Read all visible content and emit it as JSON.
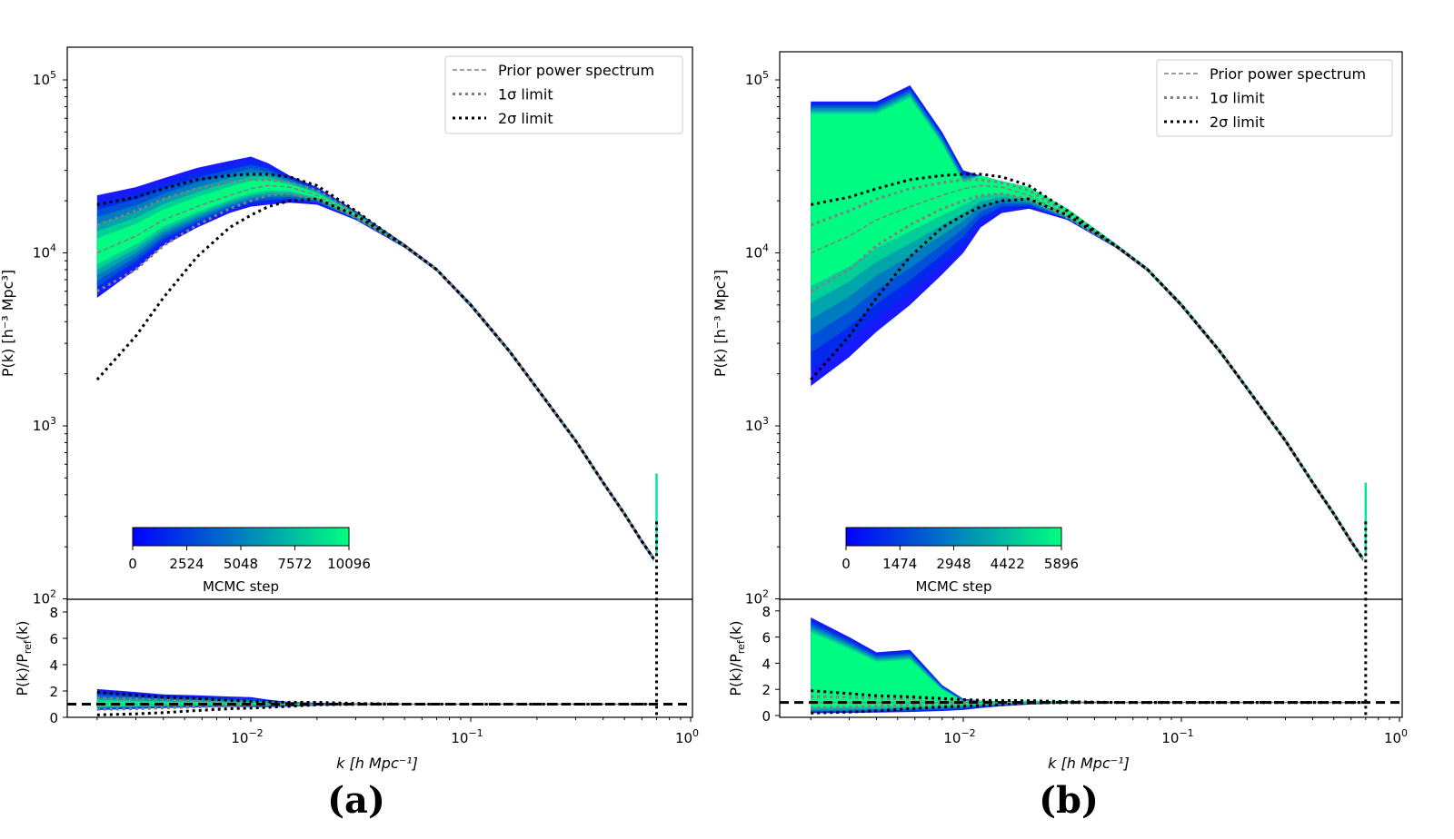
{
  "chart_data": [
    {
      "type": "line",
      "panel_label": "(a)",
      "xlabel": "k [h Mpc⁻¹]",
      "ylabel_top": "P(k) [h⁻³ Mpc³]",
      "ylabel_bottom": {
        "main": "P(k)/P",
        "sub": "ref",
        "tail": "(k)"
      },
      "x_scale": "log",
      "y_scale_top": "log",
      "xlim": [
        0.00146,
        1.02
      ],
      "ylim_top": [
        100,
        155000
      ],
      "ylim_bottom": [
        0,
        9
      ],
      "xticks": [
        {
          "base": "10",
          "exp": "−2"
        },
        {
          "base": "10",
          "exp": "−1"
        },
        {
          "base": "10",
          "exp": "0"
        }
      ],
      "yticks_top": [
        {
          "base": "10",
          "exp": "2"
        },
        {
          "base": "10",
          "exp": "3"
        },
        {
          "base": "10",
          "exp": "4"
        },
        {
          "base": "10",
          "exp": "5"
        }
      ],
      "yticks_bottom": [
        "0",
        "2",
        "4",
        "6",
        "8"
      ],
      "legend": {
        "position": "top-right",
        "entries": [
          "Prior power spectrum",
          "1σ limit",
          "2σ limit"
        ]
      },
      "colorbar": {
        "label": "MCMC step",
        "ticks": [
          "0",
          "2524",
          "5048",
          "7572",
          "10096"
        ],
        "colormap": [
          "#0000ff",
          "#00ff80"
        ]
      },
      "colors": {
        "prior": "#808080",
        "sigma1": "#808080",
        "sigma2": "#000000",
        "ratio_ref": "#000000"
      },
      "k": [
        0.002,
        0.003,
        0.004,
        0.0057,
        0.008,
        0.01,
        0.012,
        0.015,
        0.02,
        0.03,
        0.05,
        0.07,
        0.1,
        0.15,
        0.2,
        0.3,
        0.4,
        0.5,
        0.6,
        0.68
      ],
      "series": [
        {
          "name": "Prior power spectrum",
          "values": [
            10000,
            12500,
            15500,
            18500,
            21500,
            23500,
            24500,
            24000,
            21500,
            16500,
            11000,
            8000,
            5000,
            2700,
            1650,
            820,
            470,
            310,
            215,
            170
          ]
        },
        {
          "name": "1σ limit (upper)",
          "values": [
            14500,
            17500,
            20500,
            23500,
            25500,
            26500,
            26500,
            25500,
            23000,
            17000,
            11000,
            8000,
            5000,
            2700,
            1650,
            820,
            470,
            310,
            215,
            170
          ]
        },
        {
          "name": "1σ limit (lower)",
          "values": [
            6000,
            8000,
            11000,
            14500,
            18000,
            20000,
            21500,
            22000,
            20500,
            16000,
            11000,
            8000,
            5000,
            2700,
            1650,
            820,
            470,
            310,
            215,
            170
          ]
        },
        {
          "name": "2σ limit (upper)",
          "values": [
            19000,
            21000,
            23500,
            26500,
            28000,
            28500,
            28500,
            27500,
            24500,
            17500,
            11000,
            8000,
            5000,
            2700,
            1650,
            820,
            470,
            310,
            215,
            170
          ]
        },
        {
          "name": "2σ limit (lower)",
          "values": [
            1850,
            3300,
            5500,
            9500,
            14000,
            16500,
            18500,
            20000,
            20500,
            16500,
            11000,
            8000,
            5000,
            2700,
            1650,
            820,
            470,
            310,
            215,
            170
          ]
        }
      ],
      "mcmc_envelope": {
        "upper": [
          21500,
          24000,
          27000,
          31000,
          34000,
          36000,
          33000,
          28000,
          24000,
          17500,
          11300,
          8200,
          5150,
          2780,
          1700,
          845,
          485,
          320,
          222,
          176
        ],
        "lower": [
          5500,
          8000,
          11000,
          14000,
          17000,
          18500,
          19000,
          19500,
          19000,
          15500,
          10700,
          7800,
          4850,
          2620,
          1600,
          795,
          455,
          300,
          208,
          165
        ]
      },
      "spike": {
        "k": 0.7,
        "P_max": 530,
        "P_min": 100
      }
    },
    {
      "type": "line",
      "panel_label": "(b)",
      "xlabel": "k [h Mpc⁻¹]",
      "ylabel_top": "P(k) [h⁻³ Mpc³]",
      "ylabel_bottom": {
        "main": "P(k)/P",
        "sub": "ref",
        "tail": "(k)"
      },
      "x_scale": "log",
      "y_scale_top": "log",
      "xlim": [
        0.00145,
        1.03
      ],
      "ylim_top": [
        100,
        155000
      ],
      "ylim_bottom": [
        0,
        9
      ],
      "xticks": [
        {
          "base": "10",
          "exp": "−2"
        },
        {
          "base": "10",
          "exp": "−1"
        },
        {
          "base": "10",
          "exp": "0"
        }
      ],
      "yticks_top": [
        {
          "base": "10",
          "exp": "2"
        },
        {
          "base": "10",
          "exp": "3"
        },
        {
          "base": "10",
          "exp": "4"
        },
        {
          "base": "10",
          "exp": "5"
        }
      ],
      "yticks_bottom": [
        "0",
        "2",
        "4",
        "6",
        "8"
      ],
      "legend": {
        "position": "top-right",
        "entries": [
          "Prior power spectrum",
          "1σ limit",
          "2σ limit"
        ]
      },
      "colorbar": {
        "label": "MCMC step",
        "ticks": [
          "0",
          "1474",
          "2948",
          "4422",
          "5896"
        ],
        "colormap": [
          "#0000ff",
          "#00ff80"
        ]
      },
      "colors": {
        "prior": "#808080",
        "sigma1": "#808080",
        "sigma2": "#000000",
        "ratio_ref": "#000000"
      },
      "k": [
        0.002,
        0.003,
        0.004,
        0.0057,
        0.008,
        0.01,
        0.012,
        0.015,
        0.02,
        0.03,
        0.05,
        0.07,
        0.1,
        0.15,
        0.2,
        0.3,
        0.4,
        0.5,
        0.6,
        0.68
      ],
      "series": [
        {
          "name": "Prior power spectrum",
          "values": [
            10000,
            12500,
            15500,
            18500,
            21500,
            23500,
            24500,
            24000,
            21500,
            16500,
            11000,
            8000,
            5000,
            2700,
            1650,
            820,
            470,
            310,
            215,
            170
          ]
        },
        {
          "name": "1σ limit (upper)",
          "values": [
            14500,
            17500,
            20500,
            23500,
            25500,
            26500,
            26500,
            25500,
            23000,
            17000,
            11000,
            8000,
            5000,
            2700,
            1650,
            820,
            470,
            310,
            215,
            170
          ]
        },
        {
          "name": "1σ limit (lower)",
          "values": [
            6000,
            8000,
            11000,
            14500,
            18000,
            20000,
            21500,
            22000,
            20500,
            16000,
            11000,
            8000,
            5000,
            2700,
            1650,
            820,
            470,
            310,
            215,
            170
          ]
        },
        {
          "name": "2σ limit (upper)",
          "values": [
            19000,
            21000,
            23500,
            26500,
            28000,
            28500,
            28500,
            27500,
            24500,
            17500,
            11000,
            8000,
            5000,
            2700,
            1650,
            820,
            470,
            310,
            215,
            170
          ]
        },
        {
          "name": "2σ limit (lower)",
          "values": [
            1850,
            3300,
            5500,
            9500,
            14000,
            16500,
            18500,
            20000,
            20500,
            16500,
            11000,
            8000,
            5000,
            2700,
            1650,
            820,
            470,
            310,
            215,
            170
          ]
        }
      ],
      "mcmc_envelope": {
        "upper": [
          75000,
          75000,
          75000,
          93000,
          50000,
          30000,
          28000,
          26000,
          24000,
          18000,
          11300,
          8200,
          5150,
          2780,
          1700,
          845,
          485,
          320,
          222,
          176
        ],
        "lower": [
          1700,
          2500,
          3500,
          5000,
          7500,
          10000,
          14000,
          17000,
          18000,
          15500,
          10700,
          7800,
          4850,
          2620,
          1600,
          795,
          455,
          300,
          208,
          165
        ]
      },
      "spike": {
        "k": 0.7,
        "P_max": 470,
        "P_min": 100
      }
    }
  ]
}
